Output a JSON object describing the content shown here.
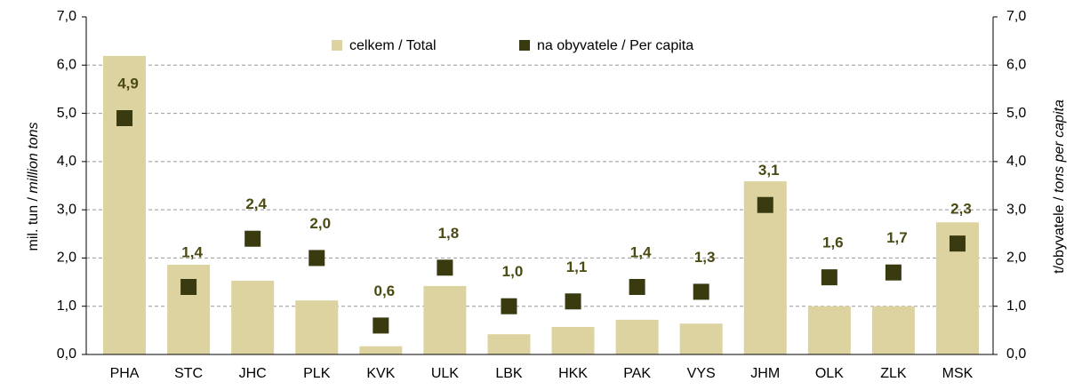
{
  "chart_data": {
    "type": "bar",
    "y_label": [
      "mil. tun / ",
      "million tons"
    ],
    "y2_label": [
      "t/obyvatele / ",
      "tons per capita"
    ],
    "categories": [
      "PHA",
      "STC",
      "JHC",
      "PLK",
      "KVK",
      "ULK",
      "LBK",
      "HKK",
      "PAK",
      "VYS",
      "JHM",
      "OLK",
      "ZLK",
      "MSK"
    ],
    "series": [
      {
        "name": "celkem / Total",
        "color": "#ddd3a0",
        "type": "bar",
        "values": [
          6.19,
          1.86,
          1.53,
          1.12,
          0.17,
          1.42,
          0.42,
          0.57,
          0.72,
          0.64,
          3.59,
          1.0,
          1.0,
          2.74
        ]
      },
      {
        "name": "na obyvatele / Per capita",
        "color": "#3a3a10",
        "type": "scatter",
        "axis": "y2",
        "values": [
          4.9,
          1.4,
          2.4,
          2.0,
          0.6,
          1.8,
          1.0,
          1.1,
          1.4,
          1.3,
          3.1,
          1.6,
          1.7,
          2.3
        ],
        "value_labels": [
          "4,9",
          "1,4",
          "2,4",
          "2,0",
          "0,6",
          "1,8",
          "1,0",
          "1,1",
          "1,4",
          "1,3",
          "3,1",
          "1,6",
          "1,7",
          "2,3"
        ]
      }
    ],
    "ylim": [
      0,
      7
    ],
    "yticks": [
      {
        "value": 0,
        "label": "0,0"
      },
      {
        "value": 1,
        "label": "1,0"
      },
      {
        "value": 2,
        "label": "2,0"
      },
      {
        "value": 3,
        "label": "3,0"
      },
      {
        "value": 4,
        "label": "4,0"
      },
      {
        "value": 5,
        "label": "5,0"
      },
      {
        "value": 6,
        "label": "6,0"
      },
      {
        "value": 7,
        "label": "7,0"
      }
    ],
    "y2lim": [
      0,
      7
    ],
    "y2ticks": [
      {
        "value": 0,
        "label": "0,0"
      },
      {
        "value": 1,
        "label": "1,0"
      },
      {
        "value": 2,
        "label": "2,0"
      },
      {
        "value": 3,
        "label": "3,0"
      },
      {
        "value": 4,
        "label": "4,0"
      },
      {
        "value": 5,
        "label": "5,0"
      },
      {
        "value": 6,
        "label": "6,0"
      },
      {
        "value": 7,
        "label": "7,0"
      }
    ],
    "grid": true,
    "legend": "top"
  }
}
